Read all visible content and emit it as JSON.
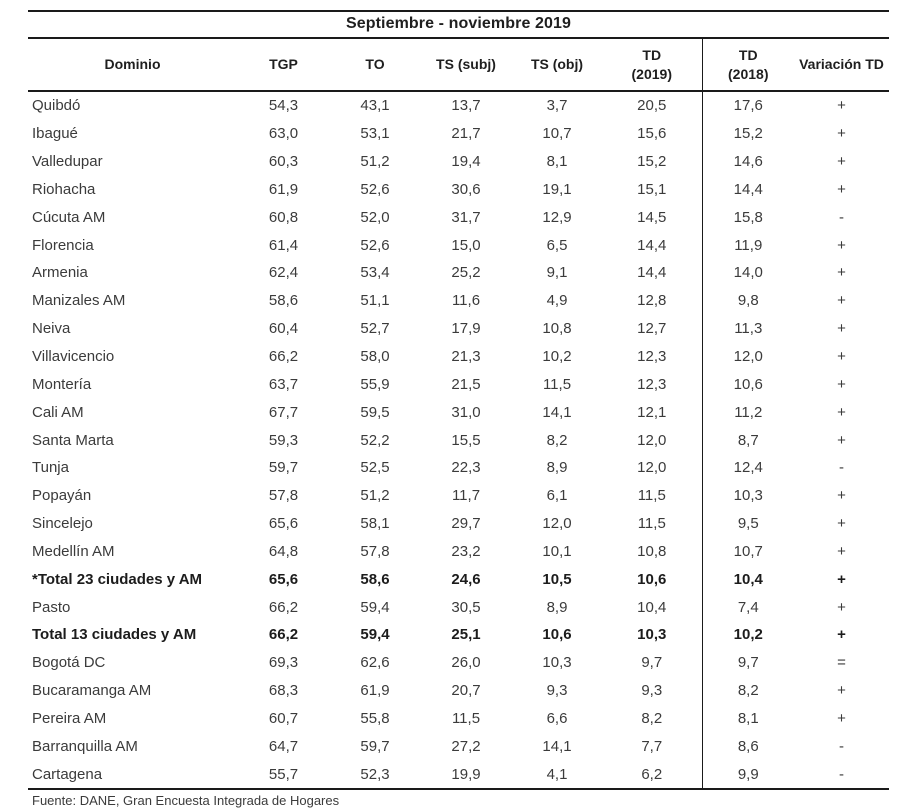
{
  "title": "Septiembre - noviembre 2019",
  "header": {
    "dominio": "Dominio",
    "tgp": "TGP",
    "to": "TO",
    "ts_subj": "TS (subj)",
    "ts_obj": "TS (obj)",
    "td2019_line1": "TD",
    "td2019_line2": "(2019)",
    "td2018_line1": "TD",
    "td2018_line2": "(2018)",
    "variacion": "Variación TD"
  },
  "rows": [
    {
      "cells": [
        "Quibdó",
        "54,3",
        "43,1",
        "13,7",
        "3,7",
        "20,5",
        "17,6",
        "+"
      ],
      "bold": false
    },
    {
      "cells": [
        "Ibagué",
        "63,0",
        "53,1",
        "21,7",
        "10,7",
        "15,6",
        "15,2",
        "+"
      ],
      "bold": false
    },
    {
      "cells": [
        "Valledupar",
        "60,3",
        "51,2",
        "19,4",
        "8,1",
        "15,2",
        "14,6",
        "+"
      ],
      "bold": false
    },
    {
      "cells": [
        "Riohacha",
        "61,9",
        "52,6",
        "30,6",
        "19,1",
        "15,1",
        "14,4",
        "+"
      ],
      "bold": false
    },
    {
      "cells": [
        "Cúcuta AM",
        "60,8",
        "52,0",
        "31,7",
        "12,9",
        "14,5",
        "15,8",
        "-"
      ],
      "bold": false
    },
    {
      "cells": [
        "Florencia",
        "61,4",
        "52,6",
        "15,0",
        "6,5",
        "14,4",
        "11,9",
        "+"
      ],
      "bold": false
    },
    {
      "cells": [
        "Armenia",
        "62,4",
        "53,4",
        "25,2",
        "9,1",
        "14,4",
        "14,0",
        "+"
      ],
      "bold": false
    },
    {
      "cells": [
        "Manizales AM",
        "58,6",
        "51,1",
        "11,6",
        "4,9",
        "12,8",
        "9,8",
        "+"
      ],
      "bold": false
    },
    {
      "cells": [
        "Neiva",
        "60,4",
        "52,7",
        "17,9",
        "10,8",
        "12,7",
        "11,3",
        "+"
      ],
      "bold": false
    },
    {
      "cells": [
        "Villavicencio",
        "66,2",
        "58,0",
        "21,3",
        "10,2",
        "12,3",
        "12,0",
        "+"
      ],
      "bold": false
    },
    {
      "cells": [
        "Montería",
        "63,7",
        "55,9",
        "21,5",
        "11,5",
        "12,3",
        "10,6",
        "+"
      ],
      "bold": false
    },
    {
      "cells": [
        "Cali AM",
        "67,7",
        "59,5",
        "31,0",
        "14,1",
        "12,1",
        "11,2",
        "+"
      ],
      "bold": false
    },
    {
      "cells": [
        "Santa Marta",
        "59,3",
        "52,2",
        "15,5",
        "8,2",
        "12,0",
        "8,7",
        "+"
      ],
      "bold": false
    },
    {
      "cells": [
        "Tunja",
        "59,7",
        "52,5",
        "22,3",
        "8,9",
        "12,0",
        "12,4",
        "-"
      ],
      "bold": false
    },
    {
      "cells": [
        "Popayán",
        "57,8",
        "51,2",
        "11,7",
        "6,1",
        "11,5",
        "10,3",
        "+"
      ],
      "bold": false
    },
    {
      "cells": [
        "Sincelejo",
        "65,6",
        "58,1",
        "29,7",
        "12,0",
        "11,5",
        "9,5",
        "+"
      ],
      "bold": false
    },
    {
      "cells": [
        "Medellín AM",
        "64,8",
        "57,8",
        "23,2",
        "10,1",
        "10,8",
        "10,7",
        "+"
      ],
      "bold": false
    },
    {
      "cells": [
        "*Total 23 ciudades y AM",
        "65,6",
        "58,6",
        "24,6",
        "10,5",
        "10,6",
        "10,4",
        "+"
      ],
      "bold": true
    },
    {
      "cells": [
        "Pasto",
        "66,2",
        "59,4",
        "30,5",
        "8,9",
        "10,4",
        "7,4",
        "+"
      ],
      "bold": false
    },
    {
      "cells": [
        "Total 13 ciudades y AM",
        "66,2",
        "59,4",
        "25,1",
        "10,6",
        "10,3",
        "10,2",
        "+"
      ],
      "bold": true
    },
    {
      "cells": [
        "Bogotá DC",
        "69,3",
        "62,6",
        "26,0",
        "10,3",
        "9,7",
        "9,7",
        "="
      ],
      "bold": false
    },
    {
      "cells": [
        "Bucaramanga AM",
        "68,3",
        "61,9",
        "20,7",
        "9,3",
        "9,3",
        "8,2",
        "+"
      ],
      "bold": false
    },
    {
      "cells": [
        "Pereira AM",
        "60,7",
        "55,8",
        "11,5",
        "6,6",
        "8,2",
        "8,1",
        "+"
      ],
      "bold": false
    },
    {
      "cells": [
        "Barranquilla AM",
        "64,7",
        "59,7",
        "27,2",
        "14,1",
        "7,7",
        "8,6",
        "-"
      ],
      "bold": false
    },
    {
      "cells": [
        "Cartagena",
        "55,7",
        "52,3",
        "19,9",
        "4,1",
        "6,2",
        "9,9",
        "-"
      ],
      "bold": false
    }
  ],
  "source": "Fuente: DANE, Gran Encuesta Integrada de Hogares",
  "colors": {
    "text": "#3b3b3b",
    "bold_text": "#1c1c1c",
    "border": "#1a1a1a",
    "background": "#ffffff"
  }
}
